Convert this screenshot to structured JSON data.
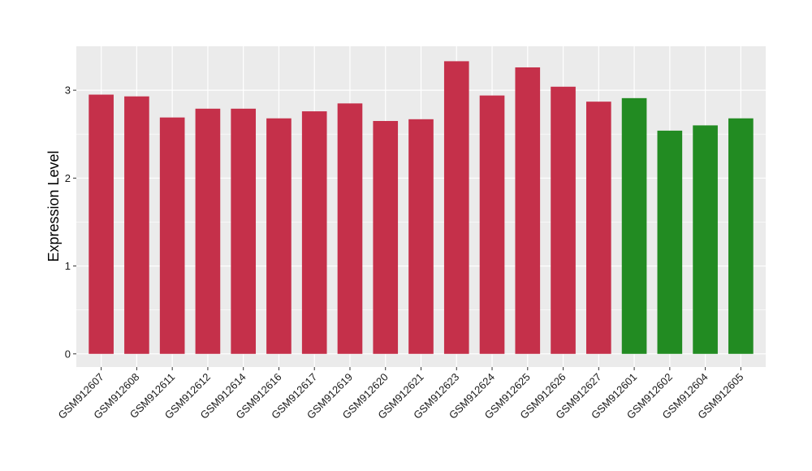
{
  "chart_data": {
    "type": "bar",
    "title": "",
    "xlabel": "",
    "ylabel": "Expression Level",
    "ylim": [
      -0.15,
      3.5
    ],
    "yticks": [
      0,
      1,
      2,
      3
    ],
    "grid": true,
    "panel_background": "#ebebeb",
    "grid_color": "#ffffff",
    "categories": [
      "GSM912607",
      "GSM912608",
      "GSM912611",
      "GSM912612",
      "GSM912614",
      "GSM912616",
      "GSM912617",
      "GSM912619",
      "GSM912620",
      "GSM912621",
      "GSM912623",
      "GSM912624",
      "GSM912625",
      "GSM912626",
      "GSM912627",
      "GSM912601",
      "GSM912602",
      "GSM912604",
      "GSM912605"
    ],
    "values": [
      2.95,
      2.93,
      2.69,
      2.79,
      2.79,
      2.68,
      2.76,
      2.85,
      2.65,
      2.67,
      3.33,
      2.94,
      3.26,
      3.04,
      2.87,
      2.91,
      2.54,
      2.6,
      2.68
    ],
    "colors": [
      "#c5304a",
      "#c5304a",
      "#c5304a",
      "#c5304a",
      "#c5304a",
      "#c5304a",
      "#c5304a",
      "#c5304a",
      "#c5304a",
      "#c5304a",
      "#c5304a",
      "#c5304a",
      "#c5304a",
      "#c5304a",
      "#c5304a",
      "#228b22",
      "#228b22",
      "#228b22",
      "#228b22"
    ]
  }
}
